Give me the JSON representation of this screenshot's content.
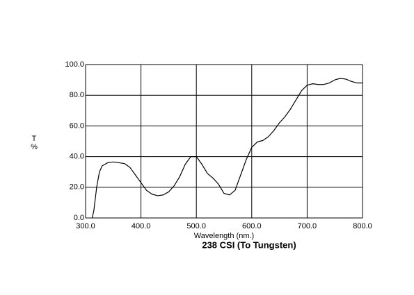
{
  "chart_data": {
    "type": "line",
    "title": "238 CSI (To Tungsten)",
    "x_label": "Wavelength (nm.)",
    "y_label": [
      "T",
      "%"
    ],
    "x": [
      312,
      315,
      320,
      325,
      330,
      340,
      350,
      360,
      370,
      380,
      390,
      400,
      410,
      420,
      430,
      440,
      450,
      460,
      470,
      480,
      490,
      500,
      510,
      520,
      530,
      540,
      550,
      560,
      570,
      580,
      590,
      600,
      610,
      620,
      630,
      640,
      650,
      660,
      670,
      680,
      690,
      700,
      710,
      720,
      730,
      740,
      750,
      760,
      770,
      780,
      790,
      800
    ],
    "series": [
      {
        "color": "#000000",
        "values": [
          0,
          5,
          20,
          30,
          34,
          36,
          36.5,
          36,
          35.5,
          33,
          28,
          23,
          18,
          15.5,
          14.5,
          15,
          17,
          21,
          27,
          35,
          40,
          40,
          35,
          29,
          26,
          22,
          16,
          15,
          18,
          28,
          38,
          46,
          49.5,
          50.5,
          53,
          57,
          62,
          66,
          71,
          77,
          83,
          86.5,
          87.5,
          87,
          87,
          88,
          90,
          91,
          90.5,
          89,
          88,
          88
        ]
      }
    ],
    "xlim": [
      300,
      800
    ],
    "ylim": [
      0,
      100
    ],
    "xticks": [
      {
        "value": 300,
        "label": "300.0"
      },
      {
        "value": 400,
        "label": "400.0"
      },
      {
        "value": 500,
        "label": "500.0"
      },
      {
        "value": 600,
        "label": "600.0"
      },
      {
        "value": 700,
        "label": "700.0"
      },
      {
        "value": 800,
        "label": "800.0"
      }
    ],
    "yticks": [
      {
        "value": 0,
        "label": "0.0"
      },
      {
        "value": 20,
        "label": "20.0"
      },
      {
        "value": 40,
        "label": "40.0"
      },
      {
        "value": 60,
        "label": "60.0"
      },
      {
        "value": 80,
        "label": "80.0"
      },
      {
        "value": 100,
        "label": "100.0"
      }
    ],
    "grid": true
  }
}
